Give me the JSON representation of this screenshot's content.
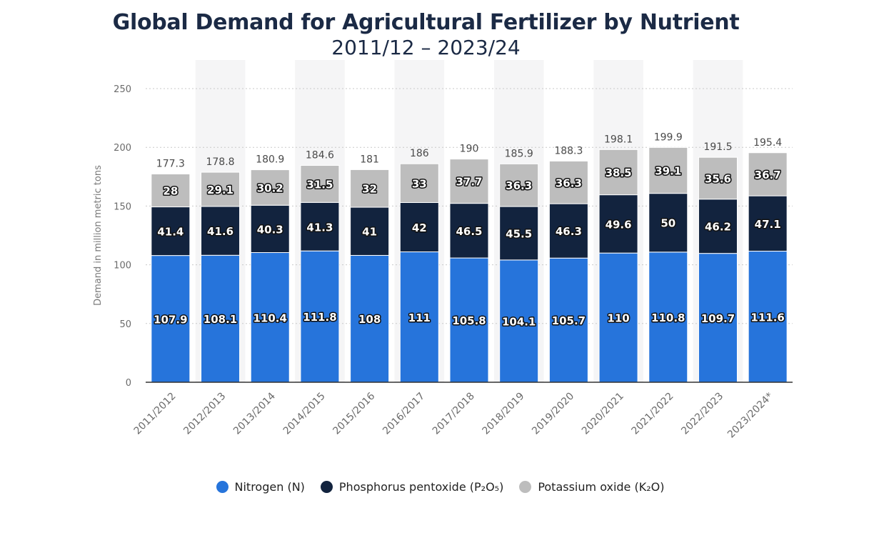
{
  "chart_data": {
    "type": "bar",
    "stacked": true,
    "title": "Global Demand for Agricultural Fertilizer by Nutrient",
    "subtitle": "2011/12 – 2023/24",
    "ylabel": "Demand in million metric tons",
    "xlabel": "",
    "ylim": [
      0,
      250
    ],
    "yticks": [
      0,
      50,
      100,
      150,
      200,
      250
    ],
    "grid": true,
    "legend_position": "bottom",
    "categories": [
      "2011/2012",
      "2012/2013",
      "2013/2014",
      "2014/2015",
      "2015/2016",
      "2016/2017",
      "2017/2018",
      "2018/2019",
      "2019/2020",
      "2020/2021",
      "2021/2022",
      "2022/2023",
      "2023/2024*"
    ],
    "series": [
      {
        "name": "Nitrogen (N)",
        "color": "#2674db",
        "values": [
          107.9,
          108.1,
          110.4,
          111.8,
          108,
          111,
          105.8,
          104.1,
          105.7,
          110,
          110.8,
          109.7,
          111.6
        ],
        "labels": [
          "107.9",
          "108.1",
          "110.4",
          "111.8",
          "108",
          "111",
          "105.8",
          "104.1",
          "105.7",
          "110",
          "110.8",
          "109.7",
          "111.6"
        ]
      },
      {
        "name": "Phosphorus pentoxide (P₂O₅)",
        "color": "#12233e",
        "values": [
          41.4,
          41.6,
          40.3,
          41.3,
          41,
          42,
          46.5,
          45.5,
          46.3,
          49.6,
          50,
          46.2,
          47.1
        ],
        "labels": [
          "41.4",
          "41.6",
          "40.3",
          "41.3",
          "41",
          "42",
          "46.5",
          "45.5",
          "46.3",
          "49.6",
          "50",
          "46.2",
          "47.1"
        ]
      },
      {
        "name": "Potassium oxide (K₂O)",
        "color": "#bdbdbd",
        "values": [
          28,
          29.1,
          30.2,
          31.5,
          32,
          33,
          37.7,
          36.3,
          36.3,
          38.5,
          39.1,
          35.6,
          36.7
        ],
        "labels": [
          "28",
          "29.1",
          "30.2",
          "31.5",
          "32",
          "33",
          "37.7",
          "36.3",
          "36.3",
          "38.5",
          "39.1",
          "35.6",
          "36.7"
        ]
      }
    ],
    "totals": [
      "177.3",
      "178.8",
      "180.9",
      "184.6",
      "181",
      "186",
      "190",
      "185.9",
      "188.3",
      "198.1",
      "199.9",
      "191.5",
      "195.4"
    ]
  },
  "legend": {
    "nitrogen": "Nitrogen (N)",
    "phosphorus": "Phosphorus pentoxide (P₂O₅)",
    "potassium": "Potassium oxide (K₂O)"
  }
}
